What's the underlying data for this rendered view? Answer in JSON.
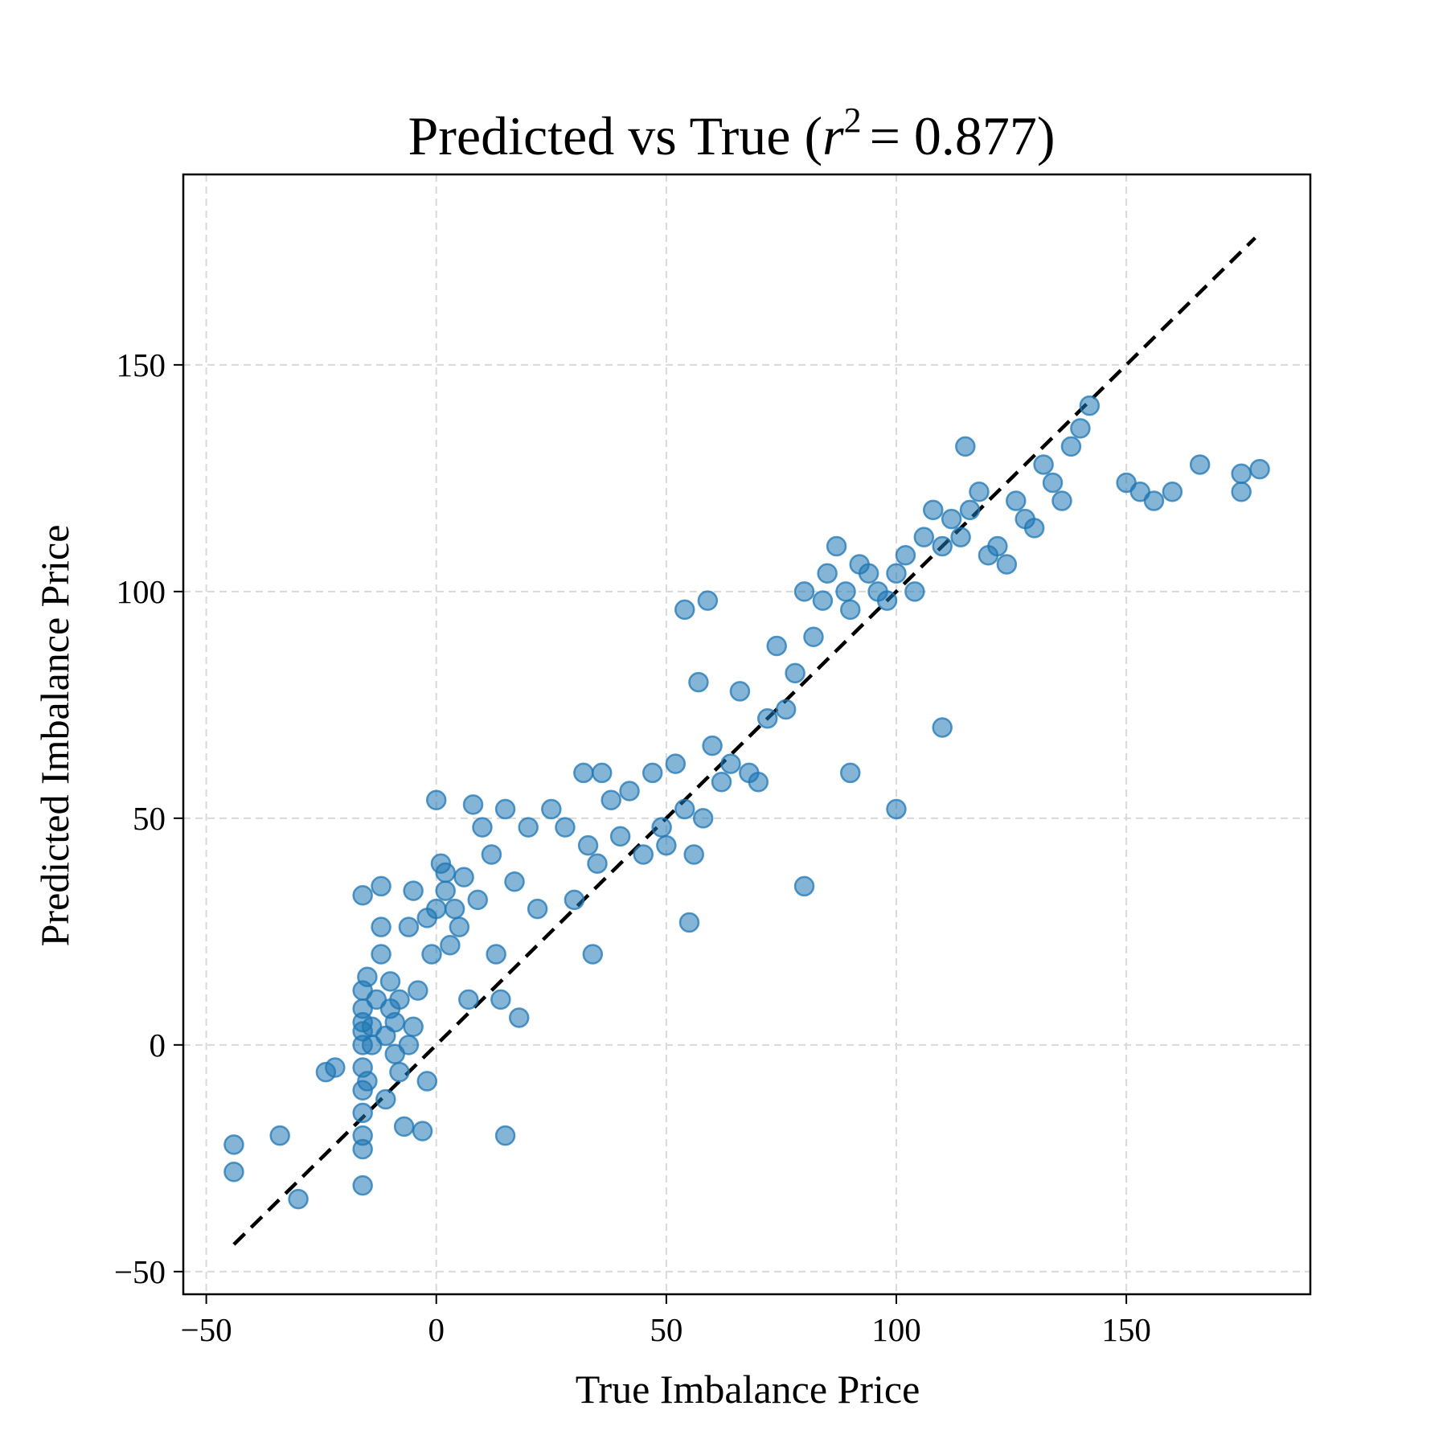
{
  "chart_data": {
    "type": "scatter",
    "title_prefix": "Predicted vs True (",
    "title_var": "r",
    "title_sup": "2",
    "title_value": "= 0.877)",
    "xlabel": "True Imbalance Price",
    "ylabel": "Predicted Imbalance Price",
    "xlim": [
      -55,
      190
    ],
    "ylim": [
      -55,
      192
    ],
    "xticks": [
      -50,
      0,
      50,
      100,
      150
    ],
    "yticks": [
      -50,
      0,
      50,
      100,
      150
    ],
    "xtick_labels": [
      "−50",
      "0",
      "50",
      "100",
      "150"
    ],
    "ytick_labels": [
      "−50",
      "0",
      "50",
      "100",
      "150"
    ],
    "grid": true,
    "reference_line": {
      "x": [
        -44,
        178
      ],
      "y": [
        -44,
        178
      ],
      "style": "dashed",
      "color": "#000000"
    },
    "marker_color": "#1f77b4",
    "series": [
      {
        "x": [
          -44,
          -44,
          -34,
          -30,
          -24,
          -22,
          -16,
          -16,
          -16,
          -16,
          -16,
          -16,
          -16,
          -16,
          -16,
          -16,
          -16,
          -16,
          -15,
          -15,
          -14,
          -14,
          -13,
          -12,
          -12,
          -12,
          -11,
          -11,
          -10,
          -10,
          -9,
          -9,
          -8,
          -8,
          -7,
          -6,
          -6,
          -5,
          -5,
          -4,
          -3,
          -2,
          -2,
          -1,
          0,
          0,
          1,
          2,
          2,
          3,
          4,
          5,
          6,
          7,
          8,
          9,
          10,
          12,
          13,
          14,
          15,
          17,
          18,
          20,
          22,
          25,
          28,
          30,
          32,
          33,
          34,
          35,
          36,
          38,
          40,
          42,
          45,
          47,
          49,
          50,
          52,
          54,
          55,
          56,
          57,
          58,
          60,
          62,
          64,
          66,
          68,
          70,
          72,
          74,
          76,
          78,
          80,
          82,
          84,
          85,
          87,
          89,
          90,
          92,
          94,
          96,
          98,
          100,
          102,
          104,
          106,
          108,
          110,
          112,
          114,
          116,
          118,
          120,
          122,
          124,
          126,
          128,
          130,
          132,
          134,
          136,
          138,
          140,
          142,
          150,
          153,
          156,
          160,
          166,
          175,
          175,
          179,
          54,
          59,
          15,
          80,
          100,
          90,
          110,
          115
        ],
        "y": [
          -22,
          -28,
          -20,
          -34,
          -6,
          -5,
          33,
          -31,
          -23,
          -20,
          -15,
          -10,
          -5,
          0,
          3,
          5,
          8,
          12,
          15,
          -8,
          0,
          4,
          10,
          35,
          26,
          20,
          -12,
          2,
          8,
          14,
          -2,
          5,
          -6,
          10,
          -18,
          0,
          26,
          34,
          4,
          12,
          -19,
          -8,
          28,
          20,
          30,
          54,
          40,
          38,
          34,
          22,
          30,
          26,
          37,
          10,
          53,
          32,
          48,
          42,
          20,
          10,
          52,
          36,
          6,
          48,
          30,
          52,
          48,
          32,
          60,
          44,
          20,
          40,
          60,
          54,
          46,
          56,
          42,
          60,
          48,
          44,
          62,
          52,
          27,
          42,
          80,
          50,
          66,
          58,
          62,
          78,
          60,
          58,
          72,
          88,
          74,
          82,
          100,
          90,
          98,
          104,
          110,
          100,
          96,
          106,
          104,
          100,
          98,
          104,
          108,
          100,
          112,
          118,
          110,
          116,
          112,
          118,
          122,
          108,
          110,
          106,
          120,
          116,
          114,
          128,
          124,
          120,
          132,
          136,
          141,
          124,
          122,
          120,
          122,
          128,
          122,
          126,
          127,
          96,
          98,
          -20,
          35,
          52,
          60,
          70,
          132
        ]
      }
    ]
  }
}
